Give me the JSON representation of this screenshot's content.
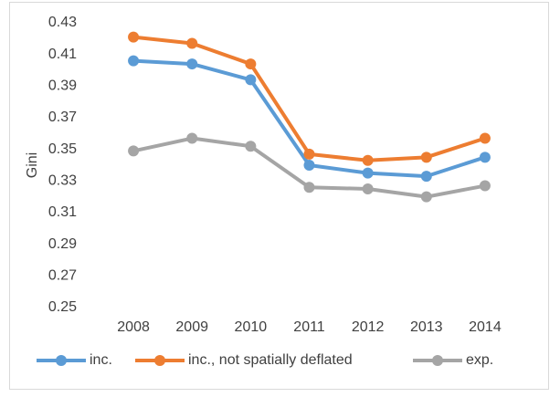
{
  "chart_data": {
    "type": "line",
    "y_label": "Gini",
    "categories": [
      "2008",
      "2009",
      "2010",
      "2011",
      "2012",
      "2013",
      "2014"
    ],
    "series": [
      {
        "name": "inc.",
        "color": "#5b9bd5",
        "values": [
          0.406,
          0.404,
          0.394,
          0.34,
          0.335,
          0.333,
          0.345
        ]
      },
      {
        "name": "inc., not spatially deflated",
        "color": "#ed7d31",
        "values": [
          0.421,
          0.417,
          0.404,
          0.347,
          0.343,
          0.345,
          0.357
        ]
      },
      {
        "name": "exp.",
        "color": "#a5a5a5",
        "values": [
          0.349,
          0.357,
          0.352,
          0.326,
          0.325,
          0.32,
          0.327
        ]
      }
    ],
    "ylim": [
      0.25,
      0.43
    ],
    "yticks": [
      0.25,
      0.27,
      0.29,
      0.31,
      0.33,
      0.35,
      0.37,
      0.39,
      0.41,
      0.43
    ],
    "grid": false,
    "legend": "bottom"
  }
}
